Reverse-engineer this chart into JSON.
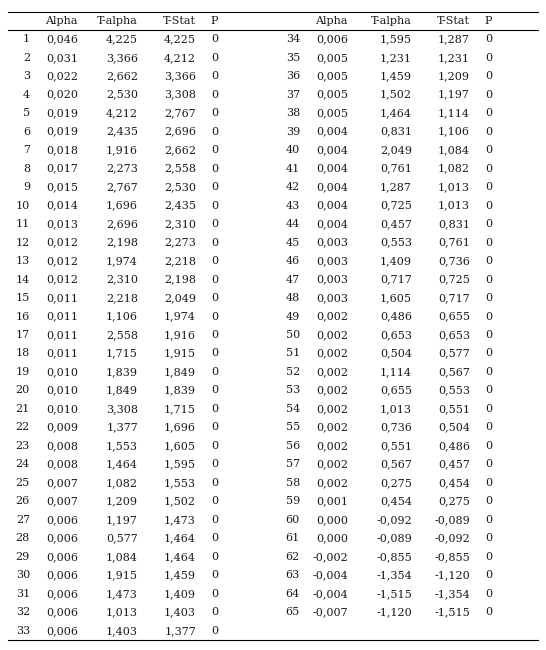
{
  "headers": [
    "Alpha",
    "T-alpha",
    "T-Stat",
    "P"
  ],
  "rows_left": [
    [
      "1",
      "0,046",
      "4,225",
      "4,225",
      "0"
    ],
    [
      "2",
      "0,031",
      "3,366",
      "4,212",
      "0"
    ],
    [
      "3",
      "0,022",
      "2,662",
      "3,366",
      "0"
    ],
    [
      "4",
      "0,020",
      "2,530",
      "3,308",
      "0"
    ],
    [
      "5",
      "0,019",
      "4,212",
      "2,767",
      "0"
    ],
    [
      "6",
      "0,019",
      "2,435",
      "2,696",
      "0"
    ],
    [
      "7",
      "0,018",
      "1,916",
      "2,662",
      "0"
    ],
    [
      "8",
      "0,017",
      "2,273",
      "2,558",
      "0"
    ],
    [
      "9",
      "0,015",
      "2,767",
      "2,530",
      "0"
    ],
    [
      "10",
      "0,014",
      "1,696",
      "2,435",
      "0"
    ],
    [
      "11",
      "0,013",
      "2,696",
      "2,310",
      "0"
    ],
    [
      "12",
      "0,012",
      "2,198",
      "2,273",
      "0"
    ],
    [
      "13",
      "0,012",
      "1,974",
      "2,218",
      "0"
    ],
    [
      "14",
      "0,012",
      "2,310",
      "2,198",
      "0"
    ],
    [
      "15",
      "0,011",
      "2,218",
      "2,049",
      "0"
    ],
    [
      "16",
      "0,011",
      "1,106",
      "1,974",
      "0"
    ],
    [
      "17",
      "0,011",
      "2,558",
      "1,916",
      "0"
    ],
    [
      "18",
      "0,011",
      "1,715",
      "1,915",
      "0"
    ],
    [
      "19",
      "0,010",
      "1,839",
      "1,849",
      "0"
    ],
    [
      "20",
      "0,010",
      "1,849",
      "1,839",
      "0"
    ],
    [
      "21",
      "0,010",
      "3,308",
      "1,715",
      "0"
    ],
    [
      "22",
      "0,009",
      "1,377",
      "1,696",
      "0"
    ],
    [
      "23",
      "0,008",
      "1,553",
      "1,605",
      "0"
    ],
    [
      "24",
      "0,008",
      "1,464",
      "1,595",
      "0"
    ],
    [
      "25",
      "0,007",
      "1,082",
      "1,553",
      "0"
    ],
    [
      "26",
      "0,007",
      "1,209",
      "1,502",
      "0"
    ],
    [
      "27",
      "0,006",
      "1,197",
      "1,473",
      "0"
    ],
    [
      "28",
      "0,006",
      "0,577",
      "1,464",
      "0"
    ],
    [
      "29",
      "0,006",
      "1,084",
      "1,464",
      "0"
    ],
    [
      "30",
      "0,006",
      "1,915",
      "1,459",
      "0"
    ],
    [
      "31",
      "0,006",
      "1,473",
      "1,409",
      "0"
    ],
    [
      "32",
      "0,006",
      "1,013",
      "1,403",
      "0"
    ],
    [
      "33",
      "0,006",
      "1,403",
      "1,377",
      "0"
    ]
  ],
  "rows_right": [
    [
      "34",
      "0,006",
      "1,595",
      "1,287",
      "0"
    ],
    [
      "35",
      "0,005",
      "1,231",
      "1,231",
      "0"
    ],
    [
      "36",
      "0,005",
      "1,459",
      "1,209",
      "0"
    ],
    [
      "37",
      "0,005",
      "1,502",
      "1,197",
      "0"
    ],
    [
      "38",
      "0,005",
      "1,464",
      "1,114",
      "0"
    ],
    [
      "39",
      "0,004",
      "0,831",
      "1,106",
      "0"
    ],
    [
      "40",
      "0,004",
      "2,049",
      "1,084",
      "0"
    ],
    [
      "41",
      "0,004",
      "0,761",
      "1,082",
      "0"
    ],
    [
      "42",
      "0,004",
      "1,287",
      "1,013",
      "0"
    ],
    [
      "43",
      "0,004",
      "0,725",
      "1,013",
      "0"
    ],
    [
      "44",
      "0,004",
      "0,457",
      "0,831",
      "0"
    ],
    [
      "45",
      "0,003",
      "0,553",
      "0,761",
      "0"
    ],
    [
      "46",
      "0,003",
      "1,409",
      "0,736",
      "0"
    ],
    [
      "47",
      "0,003",
      "0,717",
      "0,725",
      "0"
    ],
    [
      "48",
      "0,003",
      "1,605",
      "0,717",
      "0"
    ],
    [
      "49",
      "0,002",
      "0,486",
      "0,655",
      "0"
    ],
    [
      "50",
      "0,002",
      "0,653",
      "0,653",
      "0"
    ],
    [
      "51",
      "0,002",
      "0,504",
      "0,577",
      "0"
    ],
    [
      "52",
      "0,002",
      "1,114",
      "0,567",
      "0"
    ],
    [
      "53",
      "0,002",
      "0,655",
      "0,553",
      "0"
    ],
    [
      "54",
      "0,002",
      "1,013",
      "0,551",
      "0"
    ],
    [
      "55",
      "0,002",
      "0,736",
      "0,504",
      "0"
    ],
    [
      "56",
      "0,002",
      "0,551",
      "0,486",
      "0"
    ],
    [
      "57",
      "0,002",
      "0,567",
      "0,457",
      "0"
    ],
    [
      "58",
      "0,002",
      "0,275",
      "0,454",
      "0"
    ],
    [
      "59",
      "0,001",
      "0,454",
      "0,275",
      "0"
    ],
    [
      "60",
      "0,000",
      "-0,092",
      "-0,089",
      "0"
    ],
    [
      "61",
      "0,000",
      "-0,089",
      "-0,092",
      "0"
    ],
    [
      "62",
      "-0,002",
      "-0,855",
      "-0,855",
      "0"
    ],
    [
      "63",
      "-0,004",
      "-1,354",
      "-1,120",
      "0"
    ],
    [
      "64",
      "-0,004",
      "-1,515",
      "-1,354",
      "0"
    ],
    [
      "65",
      "-0,007",
      "-1,120",
      "-1,515",
      "0"
    ]
  ],
  "font_size": 8.0,
  "bg_color": "#ffffff",
  "text_color": "#1a1a1a",
  "line_color": "#000000"
}
